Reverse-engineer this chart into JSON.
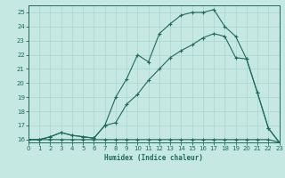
{
  "xlabel": "Humidex (Indice chaleur)",
  "bg_color": "#c5e8e2",
  "grid_color": "#a8d4cc",
  "line_color": "#1e6b5a",
  "xlim": [
    0,
    23
  ],
  "ylim": [
    15.8,
    25.5
  ],
  "xticks": [
    0,
    1,
    2,
    3,
    4,
    5,
    6,
    7,
    8,
    9,
    10,
    11,
    12,
    13,
    14,
    15,
    16,
    17,
    18,
    19,
    20,
    21,
    22,
    23
  ],
  "yticks": [
    16,
    17,
    18,
    19,
    20,
    21,
    22,
    23,
    24,
    25
  ],
  "line1_x": [
    0,
    1,
    2,
    3,
    4,
    5,
    6,
    7,
    8,
    9,
    10,
    11,
    12,
    13,
    14,
    15,
    16,
    17,
    18,
    19,
    20,
    21,
    22,
    23
  ],
  "line1_y": [
    16,
    16,
    16,
    16,
    16,
    16,
    16,
    16,
    16,
    16,
    16,
    16,
    16,
    16,
    16,
    16,
    16,
    16,
    16,
    16,
    16,
    16,
    16,
    15.8
  ],
  "line2_x": [
    0,
    1,
    2,
    3,
    4,
    5,
    6,
    7,
    8,
    9,
    10,
    11,
    12,
    13,
    14,
    15,
    16,
    17,
    18,
    19,
    20,
    21,
    22,
    23
  ],
  "line2_y": [
    16,
    16,
    16.2,
    16.5,
    16.3,
    16.2,
    16.1,
    17.0,
    17.2,
    18.5,
    19.2,
    20.2,
    21.0,
    21.8,
    22.3,
    22.7,
    23.2,
    23.5,
    23.3,
    21.8,
    21.7,
    19.3,
    16.8,
    15.8
  ],
  "line3_x": [
    0,
    1,
    2,
    3,
    4,
    5,
    6,
    7,
    8,
    9,
    10,
    11,
    12,
    13,
    14,
    15,
    16,
    17,
    18,
    19,
    20,
    21,
    22,
    23
  ],
  "line3_y": [
    16,
    16,
    16.2,
    16.5,
    16.3,
    16.2,
    16.1,
    17.0,
    19.0,
    20.3,
    22.0,
    21.5,
    23.5,
    24.2,
    24.8,
    25.0,
    25.0,
    25.2,
    24.0,
    23.3,
    21.7,
    19.3,
    16.8,
    15.8
  ]
}
